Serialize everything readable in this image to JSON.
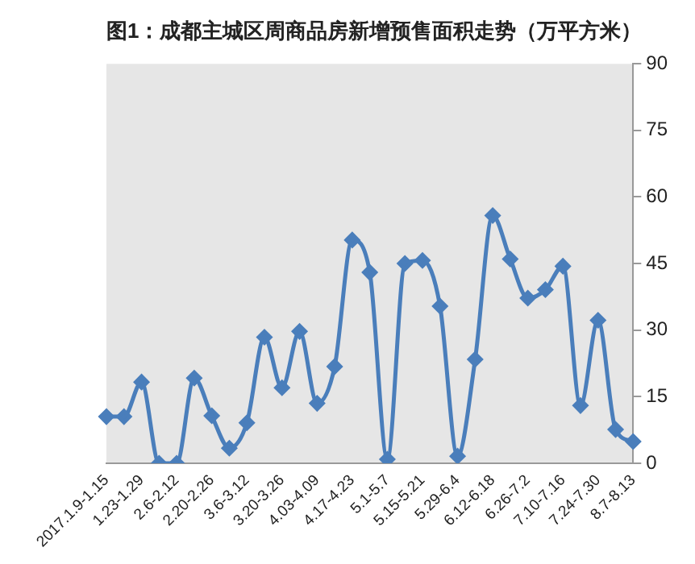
{
  "chart_data": {
    "type": "line",
    "title": "图1：成都主城区周商品房新增预售面积走势（万平方米）",
    "categories": [
      "2017.1.9-1.15",
      null,
      "1.23-1.29",
      null,
      "2.6-2.12",
      null,
      "2.20-2.26",
      null,
      "3.6-3.12",
      null,
      "3.20-3.26",
      null,
      "4.03-4.09",
      null,
      "4.17-4.23",
      null,
      "5.1-5.7",
      null,
      "5.15-5.21",
      null,
      "5.29-6.4",
      null,
      "6.12-6.18",
      null,
      "6.26-7.2",
      null,
      "7.10-7.16",
      null,
      "7.24-7.30",
      null,
      "8.7-8.13"
    ],
    "series": [
      {
        "color": "#4a7ebb",
        "values": [
          10.5,
          10.5,
          18.3,
          0,
          0,
          19.2,
          10.7,
          3.4,
          9.1,
          28.4,
          17,
          29.7,
          13.5,
          21.8,
          50.3,
          43,
          0.9,
          45,
          45.7,
          35.4,
          1.6,
          23.4,
          55.8,
          46,
          37.2,
          39.1,
          44.4,
          13,
          32.2,
          7.6,
          4.9
        ]
      }
    ],
    "ylim": [
      0,
      90
    ],
    "yticks": [
      0,
      15,
      30,
      45,
      60,
      75,
      90
    ],
    "grid": false,
    "legend": false,
    "marker": "diamond",
    "line_style": "solid"
  }
}
